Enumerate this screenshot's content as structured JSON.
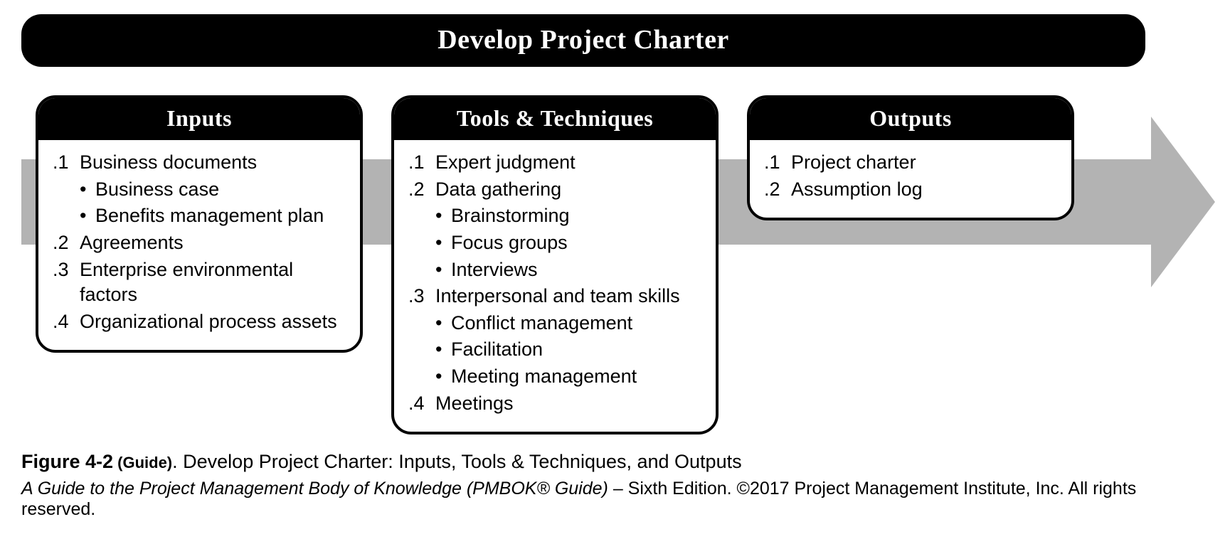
{
  "title": "Develop Project Charter",
  "arrow_shaft_color": "#b3b3b3",
  "box_border_color": "#000000",
  "header_bg": "#000000",
  "header_fg": "#ffffff",
  "boxes": [
    {
      "header": "Inputs",
      "items": [
        {
          "num": ".1",
          "text": "Business documents",
          "subs": [
            "Business case",
            "Benefits management plan"
          ]
        },
        {
          "num": ".2",
          "text": "Agreements"
        },
        {
          "num": ".3",
          "text": "Enterprise environmental factors"
        },
        {
          "num": ".4",
          "text": "Organizational process assets"
        }
      ]
    },
    {
      "header": "Tools & Techniques",
      "items": [
        {
          "num": ".1",
          "text": "Expert judgment"
        },
        {
          "num": ".2",
          "text": "Data gathering",
          "subs": [
            "Brainstorming",
            "Focus groups",
            "Interviews"
          ]
        },
        {
          "num": ".3",
          "text": "Interpersonal and team skills",
          "subs": [
            "Conflict management",
            "Facilitation",
            "Meeting management"
          ]
        },
        {
          "num": ".4",
          "text": "Meetings"
        }
      ]
    },
    {
      "header": "Outputs",
      "items": [
        {
          "num": ".1",
          "text": "Project charter"
        },
        {
          "num": ".2",
          "text": "Assumption log"
        }
      ]
    }
  ],
  "caption": {
    "fig_label": "Figure 4-2",
    "fig_sub": " (Guide)",
    "fig_desc": ". Develop Project Charter: Inputs, Tools & Techniques, and Outputs"
  },
  "source_italic": "A Guide to the Project Management Body of Knowledge (PMBOK® Guide) ",
  "source_rest": "– Sixth Edition. ©2017 Project Management Institute, Inc. All rights reserved."
}
